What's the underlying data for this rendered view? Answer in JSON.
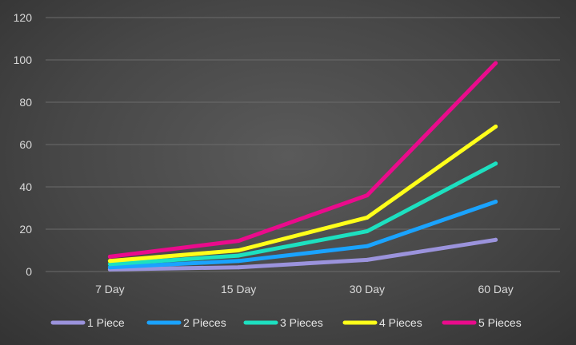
{
  "chart_data": {
    "type": "line",
    "title": "",
    "xlabel": "",
    "ylabel": "",
    "categories": [
      "7 Day",
      "15 Day",
      "30 Day",
      "60 Day"
    ],
    "ylim": [
      0,
      120
    ],
    "yticks": [
      0,
      20,
      40,
      60,
      80,
      100,
      120
    ],
    "grid": true,
    "legend_position": "bottom",
    "series": [
      {
        "name": "1 Piece",
        "color": "#9b93dc",
        "values": [
          1,
          2,
          5.5,
          15
        ]
      },
      {
        "name": "2 Pieces",
        "color": "#1aa3ff",
        "values": [
          2,
          5,
          12,
          33
        ]
      },
      {
        "name": "3 Pieces",
        "color": "#1de0c0",
        "values": [
          3.5,
          7.5,
          19,
          51
        ]
      },
      {
        "name": "4 Pieces",
        "color": "#ffff1a",
        "values": [
          5,
          10,
          25.5,
          68.5
        ]
      },
      {
        "name": "5 Pieces",
        "color": "#ea0b8c",
        "values": [
          7,
          14.5,
          36,
          98.5
        ]
      }
    ]
  }
}
